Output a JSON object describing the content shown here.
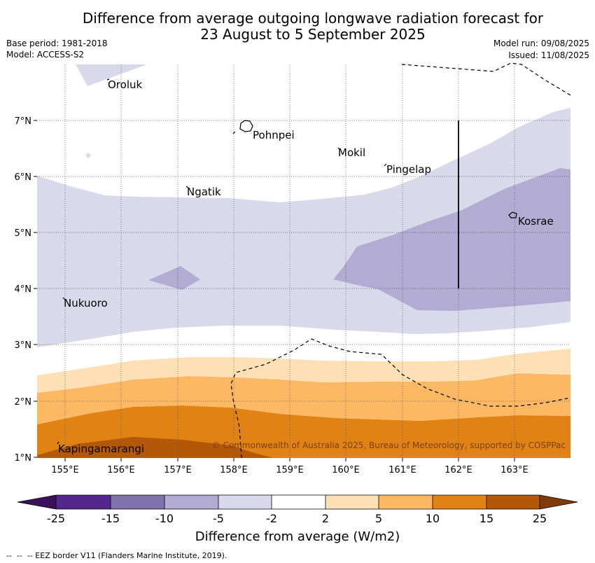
{
  "title": {
    "line1": "Difference from average outgoing longwave radiation forecast for",
    "line2": "23 August to 5 September 2025"
  },
  "meta": {
    "base_period": "Base period: 1981-2018",
    "model": "Model: ACCESS-S2",
    "model_run": "Model run: 09/08/2025",
    "issued": "Issued: 11/08/2025"
  },
  "axes": {
    "lat_labels": [
      "7°N",
      "6°N",
      "5°N",
      "4°N",
      "3°N",
      "2°N",
      "1°N"
    ],
    "lon_labels": [
      "155°E",
      "156°E",
      "157°E",
      "158°E",
      "159°E",
      "160°E",
      "161°E",
      "162°E",
      "163°E"
    ]
  },
  "places": [
    {
      "name": "Oroluk"
    },
    {
      "name": "Pohnpei"
    },
    {
      "name": "Mokil"
    },
    {
      "name": "Pingelap"
    },
    {
      "name": "Ngatik"
    },
    {
      "name": "Kosrae"
    },
    {
      "name": "Nukuoro"
    },
    {
      "name": "Kapingamarangi"
    }
  ],
  "copyright": "© Commonwealth of Australia 2025, Bureau of Meteorology, supported by COSPPac",
  "colorbar": {
    "ticks": [
      "-25",
      "-15",
      "-10",
      "-5",
      "-2",
      "2",
      "5",
      "10",
      "15",
      "25"
    ],
    "colors": [
      "#3b0f5c",
      "#54278f",
      "#8073ac",
      "#b2abd2",
      "#d8daeb",
      "#ffffff",
      "#fee0b6",
      "#fdb863",
      "#e08214",
      "#b35806",
      "#7f3b08"
    ],
    "label": "Difference from average (W/m2)"
  },
  "footer": "--  --  -- EEZ border V11 (Flanders Marine Institute, 2019)."
}
